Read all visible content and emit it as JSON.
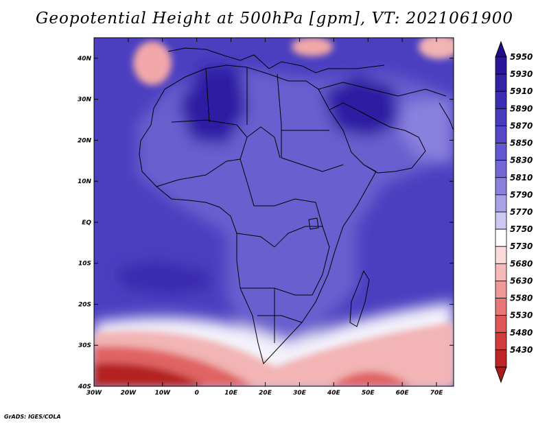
{
  "title": "Geopotential Height at 500hPa [gpm], VT: 2021061900",
  "credit": "GrADS: IGES/COLA",
  "map": {
    "field": "500hPa geopotential height",
    "units": "gpm",
    "valid_time": "2021061900",
    "lon_range": [
      -30,
      75
    ],
    "lat_range": [
      -40,
      45
    ]
  },
  "axes": {
    "lat_ticks": [
      {
        "value": 40,
        "label": "40N"
      },
      {
        "value": 30,
        "label": "30N"
      },
      {
        "value": 20,
        "label": "20N"
      },
      {
        "value": 10,
        "label": "10N"
      },
      {
        "value": 0,
        "label": "EQ"
      },
      {
        "value": -10,
        "label": "10S"
      },
      {
        "value": -20,
        "label": "20S"
      },
      {
        "value": -30,
        "label": "30S"
      },
      {
        "value": -40,
        "label": "40S"
      }
    ],
    "lon_ticks": [
      {
        "value": -30,
        "label": "30W"
      },
      {
        "value": -20,
        "label": "20W"
      },
      {
        "value": -10,
        "label": "10W"
      },
      {
        "value": 0,
        "label": "0"
      },
      {
        "value": 10,
        "label": "10E"
      },
      {
        "value": 20,
        "label": "20E"
      },
      {
        "value": 30,
        "label": "30E"
      },
      {
        "value": 40,
        "label": "40E"
      },
      {
        "value": 50,
        "label": "50E"
      },
      {
        "value": 60,
        "label": "60E"
      },
      {
        "value": 70,
        "label": "70E"
      }
    ]
  },
  "colorbar": {
    "levels": [
      {
        "label": "5950",
        "color": "#2a1699"
      },
      {
        "label": "5930",
        "color": "#3321a6"
      },
      {
        "label": "5910",
        "color": "#3c2eb3"
      },
      {
        "label": "5890",
        "color": "#4a3cbe"
      },
      {
        "label": "5870",
        "color": "#5648c8"
      },
      {
        "label": "5850",
        "color": "#6458d0"
      },
      {
        "label": "5830",
        "color": "#7468d6"
      },
      {
        "label": "5810",
        "color": "#8a80de"
      },
      {
        "label": "5790",
        "color": "#aaa2e8"
      },
      {
        "label": "5770",
        "color": "#cdc8f2"
      },
      {
        "label": "5750",
        "color": "#ffffff"
      },
      {
        "label": "5730",
        "color": "#fbdada"
      },
      {
        "label": "5680",
        "color": "#f6baba"
      },
      {
        "label": "5630",
        "color": "#ef9898"
      },
      {
        "label": "5580",
        "color": "#e87878"
      },
      {
        "label": "5530",
        "color": "#df5858"
      },
      {
        "label": "5480",
        "color": "#d33c3c"
      },
      {
        "label": "5430",
        "color": "#c12424"
      }
    ],
    "top_arrow_color": "#1e0d8c",
    "bottom_arrow_color": "#a81c1c"
  },
  "field_colors": {
    "ocean_mid": "#4b3fc0",
    "ocean_deep": "#3a2aae",
    "land_mid": "#6a5ecf",
    "land_high": "#2f1ea3",
    "land_low": "#8a80de",
    "south_white": "#f4f2fb",
    "south_pink": "#f2b4b4",
    "south_red": "#e06464",
    "south_dark": "#b42020",
    "low_center": "#f2a8a8",
    "border": "#000000"
  }
}
